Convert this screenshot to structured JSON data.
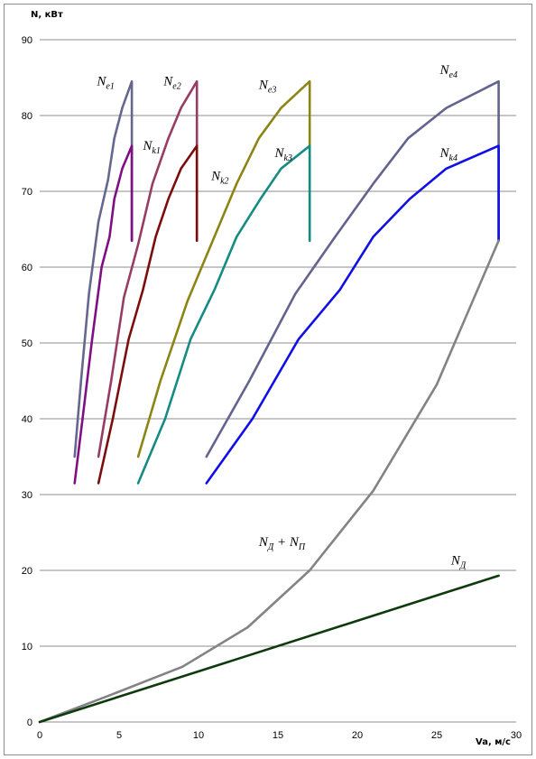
{
  "chart_data": {
    "type": "line",
    "ylabel": "N, кВт",
    "xlabel": "Va, м/с",
    "xlim": [
      0,
      30
    ],
    "ylim": [
      0,
      90
    ],
    "x_ticks": [
      0,
      5,
      10,
      15,
      20,
      25,
      30
    ],
    "y_ticks": [
      0,
      10,
      20,
      30,
      40,
      50,
      60,
      70,
      80,
      90
    ],
    "grid": "horizontal",
    "legend": "none",
    "series": [
      {
        "key": "ne1",
        "color": "#66668f",
        "label_main": "N",
        "label_sub": "e1",
        "label_at": [
          3.6,
          84
        ],
        "points": [
          [
            2.2,
            35
          ],
          [
            2.6,
            45
          ],
          [
            3.1,
            56.5
          ],
          [
            3.7,
            66
          ],
          [
            4.3,
            71.5
          ],
          [
            4.7,
            77
          ],
          [
            5.2,
            81
          ],
          [
            5.8,
            84.5
          ],
          [
            5.8,
            76
          ],
          [
            5.8,
            63.5
          ]
        ]
      },
      {
        "key": "nk1",
        "color": "#7e1084",
        "label_main": "N",
        "label_sub": "k1",
        "label_at": [
          6.5,
          75.5
        ],
        "points": [
          [
            2.2,
            31.5
          ],
          [
            2.7,
            40
          ],
          [
            3.3,
            50.5
          ],
          [
            3.9,
            60
          ],
          [
            4.4,
            64
          ],
          [
            4.7,
            69
          ],
          [
            5.2,
            73
          ],
          [
            5.8,
            76
          ],
          [
            5.8,
            63.5
          ]
        ]
      },
      {
        "key": "ne2",
        "color": "#953d63",
        "label_main": "N",
        "label_sub": "e2",
        "label_at": [
          7.8,
          84
        ],
        "points": [
          [
            3.7,
            35
          ],
          [
            4.5,
            45
          ],
          [
            5.3,
            56
          ],
          [
            6.2,
            63
          ],
          [
            7.1,
            71
          ],
          [
            8.1,
            77
          ],
          [
            8.9,
            81
          ],
          [
            9.9,
            84.5
          ],
          [
            9.9,
            76
          ],
          [
            9.9,
            63.5
          ]
        ]
      },
      {
        "key": "nk2",
        "color": "#7b0d0d",
        "label_main": "N",
        "label_sub": "k2",
        "label_at": [
          10.8,
          71.5
        ],
        "points": [
          [
            3.7,
            31.5
          ],
          [
            4.6,
            40
          ],
          [
            5.6,
            50.5
          ],
          [
            6.5,
            57
          ],
          [
            7.3,
            64
          ],
          [
            8.1,
            69
          ],
          [
            8.9,
            73
          ],
          [
            9.9,
            76
          ],
          [
            9.9,
            63.5
          ]
        ]
      },
      {
        "key": "ne3",
        "color": "#8c8414",
        "label_main": "N",
        "label_sub": "e3",
        "label_at": [
          13.8,
          83.5
        ],
        "points": [
          [
            6.2,
            35
          ],
          [
            7.6,
            45
          ],
          [
            9.3,
            55.5
          ],
          [
            10.9,
            63.5
          ],
          [
            12.4,
            71
          ],
          [
            13.8,
            77
          ],
          [
            15.2,
            81
          ],
          [
            17.0,
            84.5
          ],
          [
            17.0,
            76
          ],
          [
            17.0,
            63.5
          ]
        ]
      },
      {
        "key": "nk3",
        "color": "#168b83",
        "label_main": "N",
        "label_sub": "k3",
        "label_at": [
          14.8,
          74.5
        ],
        "points": [
          [
            6.2,
            31.5
          ],
          [
            7.9,
            40
          ],
          [
            9.5,
            50.5
          ],
          [
            11.0,
            57
          ],
          [
            12.4,
            64
          ],
          [
            13.9,
            69
          ],
          [
            15.2,
            73
          ],
          [
            17.0,
            76
          ],
          [
            17.0,
            63.5
          ]
        ]
      },
      {
        "key": "ne4",
        "color": "#63638f",
        "label_main": "N",
        "label_sub": "e4",
        "label_at": [
          25.2,
          85.5
        ],
        "points": [
          [
            10.5,
            35
          ],
          [
            13.2,
            45
          ],
          [
            16.1,
            56.5
          ],
          [
            18.6,
            64
          ],
          [
            21.0,
            71
          ],
          [
            23.2,
            77
          ],
          [
            25.6,
            81
          ],
          [
            28.9,
            84.5
          ],
          [
            28.9,
            76
          ],
          [
            28.9,
            63.5
          ]
        ]
      },
      {
        "key": "nk4",
        "color": "#0f0fe6",
        "label_main": "N",
        "label_sub": "k4",
        "label_at": [
          25.2,
          74.5
        ],
        "points": [
          [
            10.5,
            31.5
          ],
          [
            13.4,
            40
          ],
          [
            16.3,
            50.5
          ],
          [
            18.9,
            57
          ],
          [
            21.0,
            64
          ],
          [
            23.3,
            69
          ],
          [
            25.6,
            73
          ],
          [
            28.9,
            76
          ],
          [
            28.9,
            63.5
          ]
        ]
      },
      {
        "key": "nd_np",
        "color": "#838383",
        "label_main": "N",
        "label_sub": "Д",
        "label_extra": " + N",
        "label_sub2": "П",
        "label_at": [
          13.8,
          23.2
        ],
        "points": [
          [
            0,
            0
          ],
          [
            4.5,
            3.6
          ],
          [
            9.0,
            7.3
          ],
          [
            13.1,
            12.5
          ],
          [
            17.0,
            20.0
          ],
          [
            21.0,
            30.5
          ],
          [
            25.0,
            44.5
          ],
          [
            28.9,
            63.5
          ]
        ]
      },
      {
        "key": "nd",
        "color": "#0e3b0e",
        "label_main": "N",
        "label_sub": "Д",
        "label_at": [
          25.9,
          20.8
        ],
        "points": [
          [
            0,
            0
          ],
          [
            28.9,
            19.3
          ]
        ]
      }
    ]
  }
}
